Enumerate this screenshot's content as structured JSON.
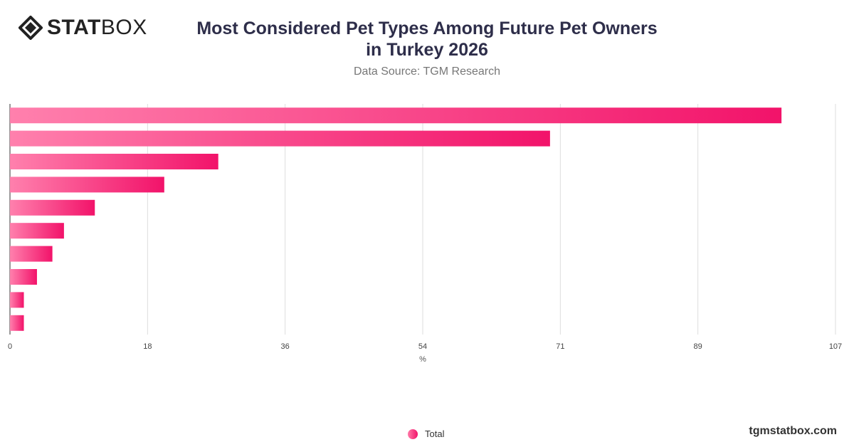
{
  "brand": {
    "name_bold": "STAT",
    "name_light": "BOX",
    "logo_icon": "diamond-logo-icon",
    "website": "tgmstatbox.com"
  },
  "colors": {
    "bar_start": "#ff80ad",
    "bar_end": "#f2136a",
    "grid": "#dddddd",
    "axis": "#333333"
  },
  "chart_data": {
    "type": "bar",
    "orientation": "horizontal",
    "title": "Most Considered Pet Types Among Future Pet Owners in Turkey 2026",
    "title_lines": [
      "Most Considered Pet Types Among Future Pet Owners",
      "in Turkey 2026"
    ],
    "subtitle": "Data Source: TGM Research",
    "xlabel": "%",
    "ylabel": "",
    "xlim": [
      0,
      107
    ],
    "xticks": [
      "0",
      "18",
      "36",
      "54",
      "71",
      "89",
      "107"
    ],
    "grid": true,
    "legend_position": "bottom-center",
    "series": [
      {
        "name": "Total",
        "values": [
          100,
          70,
          27,
          20,
          11,
          7,
          5.5,
          3.5,
          1.8,
          1.8
        ]
      }
    ]
  }
}
